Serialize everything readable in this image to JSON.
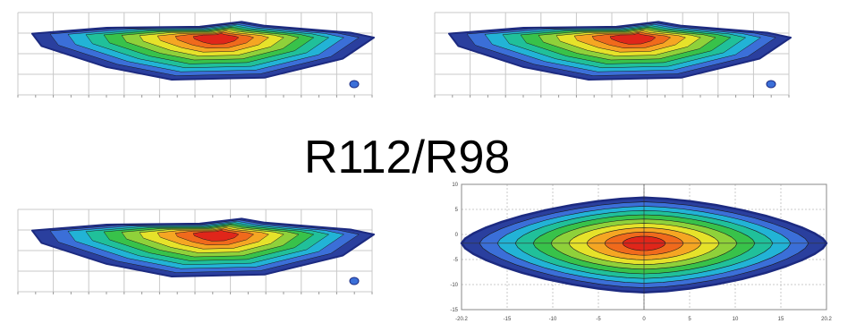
{
  "caption": "R112/R98",
  "colors": {
    "scale": [
      "#2a3f9e",
      "#3b6fd8",
      "#22b3d6",
      "#20c09a",
      "#38c24a",
      "#8fd13a",
      "#e6e22a",
      "#f5a623",
      "#f06a1c",
      "#e0261a"
    ],
    "grid": "#c8c8c8",
    "contour": "#1a1a1a",
    "background": "#ffffff"
  },
  "chart_data": [
    {
      "type": "heatmap",
      "title": "",
      "grid": true,
      "description_levels": 10,
      "peak": {
        "x": 0,
        "y": 2
      },
      "panel": "top-left"
    },
    {
      "type": "heatmap",
      "title": "",
      "grid": true,
      "description_levels": 10,
      "peak": {
        "x": 0,
        "y": 2
      },
      "panel": "top-right"
    },
    {
      "type": "heatmap",
      "title": "",
      "grid": true,
      "description_levels": 10,
      "peak": {
        "x": 0,
        "y": 2
      },
      "panel": "bottom-left"
    },
    {
      "type": "heatmap",
      "title": "",
      "grid": true,
      "xlim": [
        -20.2,
        20.2
      ],
      "x_ticks": [
        "-20.2",
        "-15",
        "-10",
        "-5",
        "0",
        "5",
        "10",
        "15",
        "20.2"
      ],
      "y_ticks": [
        "10",
        "5",
        "0",
        "-5",
        "-10",
        "-15"
      ],
      "description_levels": 10,
      "peak": {
        "x": 0,
        "y": 0
      },
      "panel": "bottom-right"
    }
  ]
}
